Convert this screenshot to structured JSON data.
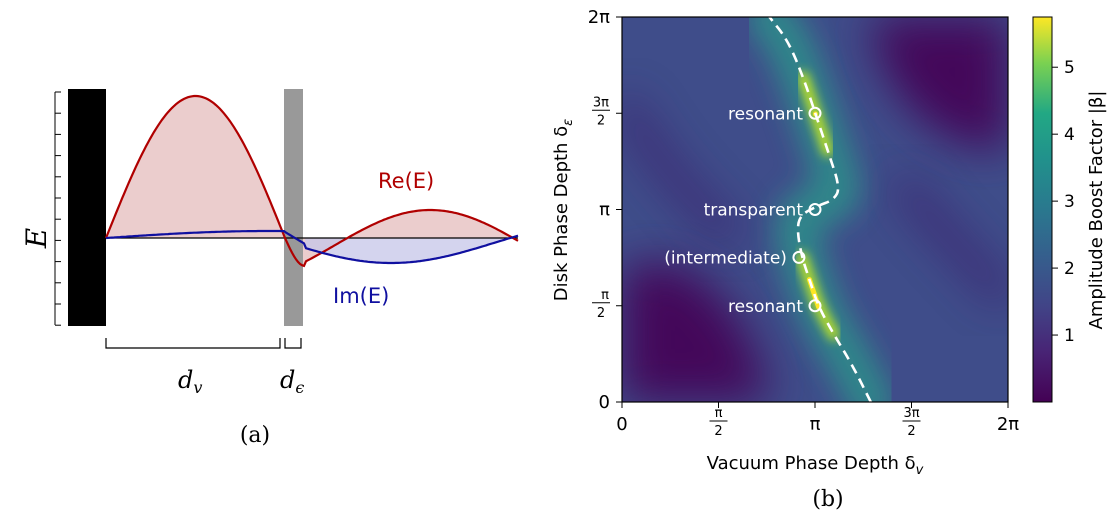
{
  "panel_a": {
    "caption": "(a)",
    "y_symbol": "E",
    "re_label": "Re(E)",
    "im_label": "Im(E)",
    "dv_label": {
      "base": "d",
      "sub": "v"
    },
    "de_label": {
      "base": "d",
      "sub": "ϵ"
    },
    "colors": {
      "re": "#b00000",
      "re_fill": "#e8c4c4",
      "im": "#1010a0",
      "im_fill": "#c6c6e8",
      "mirror": "#000000",
      "disk": "#999999"
    }
  },
  "panel_b": {
    "caption": "(b)",
    "annotations": [
      {
        "text": "resonant",
        "x": 3.1416,
        "y": 4.7124
      },
      {
        "text": "transparent",
        "x": 3.1416,
        "y": 3.1416
      },
      {
        "text": "(intermediate)",
        "x": 2.88,
        "y": 2.36
      },
      {
        "text": "resonant",
        "x": 3.1416,
        "y": 1.5708
      }
    ],
    "chart_data": {
      "type": "heatmap",
      "xlabel": "Vacuum Phase Depth δ_v",
      "ylabel": "Disk Phase Depth δ_ε",
      "xlim": [
        0,
        6.2832
      ],
      "ylim": [
        0,
        6.2832
      ],
      "x_ticks": [
        {
          "value": 0,
          "label": "0"
        },
        {
          "value": 1.5708,
          "label": "π/2"
        },
        {
          "value": 3.1416,
          "label": "π"
        },
        {
          "value": 4.7124,
          "label": "3π/2"
        },
        {
          "value": 6.2832,
          "label": "2π"
        }
      ],
      "y_ticks": [
        {
          "value": 0,
          "label": "0"
        },
        {
          "value": 1.5708,
          "label": "π/2"
        },
        {
          "value": 3.1416,
          "label": "π"
        },
        {
          "value": 4.7124,
          "label": "3π/2"
        },
        {
          "value": 6.2832,
          "label": "2π"
        }
      ],
      "resonance_curve": [
        [
          4.05,
          0
        ],
        [
          3.75,
          0.6
        ],
        [
          3.45,
          1.1
        ],
        [
          3.2,
          1.55
        ],
        [
          3.05,
          2.0
        ],
        [
          2.93,
          2.36
        ],
        [
          2.85,
          2.8
        ],
        [
          2.9,
          3.05
        ],
        [
          3.18,
          3.2
        ],
        [
          3.45,
          3.3
        ],
        [
          3.55,
          3.5
        ],
        [
          3.35,
          4.1
        ],
        [
          3.15,
          4.7
        ],
        [
          2.95,
          5.3
        ],
        [
          2.7,
          5.9
        ],
        [
          2.4,
          6.2832
        ]
      ],
      "colorbar": {
        "label": "Amplitude Boost Factor |β|",
        "range": [
          0,
          5.75
        ],
        "ticks": [
          1,
          2,
          3,
          4,
          5
        ],
        "colormap": "viridis"
      }
    }
  }
}
